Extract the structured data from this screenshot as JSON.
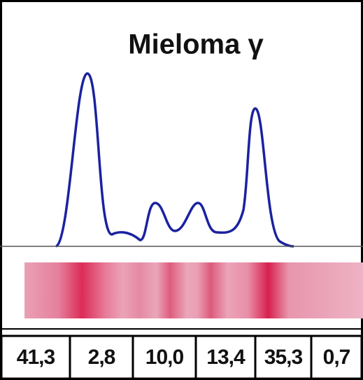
{
  "title": "Mieloma γ",
  "table": {
    "rows": [
      [
        "41,3",
        "2,8",
        "10,0",
        "13,4",
        "35,3",
        "0,7"
      ]
    ]
  }
}
